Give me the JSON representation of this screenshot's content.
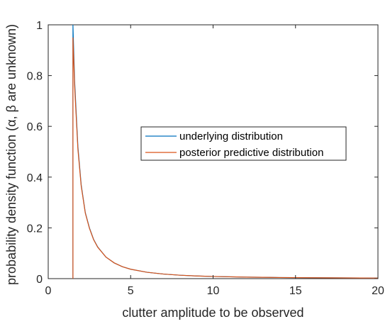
{
  "chart_data": {
    "type": "line",
    "xlabel": "clutter amplitude to be observed",
    "ylabel": "probability density function (α, β are unknown)",
    "xlim": [
      0,
      20
    ],
    "ylim": [
      0,
      1
    ],
    "xticks": [
      0,
      5,
      10,
      15,
      20
    ],
    "yticks": [
      0,
      0.2,
      0.4,
      0.6,
      0.8,
      1
    ],
    "xtick_labels": [
      "0",
      "5",
      "10",
      "15",
      "20"
    ],
    "ytick_labels": [
      "0",
      "0.2",
      "0.4",
      "0.6",
      "0.8",
      "1"
    ],
    "grid": false,
    "legend_position": "center-right",
    "series": [
      {
        "name": "underlying distribution",
        "color": "#0072BD",
        "x": [
          1.5,
          1.5,
          1.6,
          1.8,
          2.0,
          2.25,
          2.5,
          2.75,
          3.0,
          3.5,
          4.0,
          4.5,
          5.0,
          6.0,
          7.0,
          8.0,
          9.0,
          10.0,
          12.0,
          14.0,
          16.0,
          18.0,
          20.0
        ],
        "values": [
          0,
          1.0,
          0.78,
          0.52,
          0.37,
          0.26,
          0.2,
          0.155,
          0.125,
          0.085,
          0.062,
          0.047,
          0.037,
          0.025,
          0.018,
          0.0135,
          0.0105,
          0.0085,
          0.006,
          0.0044,
          0.0034,
          0.0027,
          0.0022
        ]
      },
      {
        "name": "posterior predictive distribution",
        "color": "#D95319",
        "x": [
          1.5,
          1.5,
          1.6,
          1.8,
          2.0,
          2.25,
          2.5,
          2.75,
          3.0,
          3.5,
          4.0,
          4.5,
          5.0,
          6.0,
          7.0,
          8.0,
          9.0,
          10.0,
          12.0,
          14.0,
          16.0,
          18.0,
          20.0
        ],
        "values": [
          0,
          0.95,
          0.76,
          0.51,
          0.365,
          0.258,
          0.198,
          0.154,
          0.124,
          0.085,
          0.062,
          0.047,
          0.037,
          0.025,
          0.018,
          0.0135,
          0.0105,
          0.0085,
          0.006,
          0.0044,
          0.0034,
          0.0027,
          0.0022
        ]
      }
    ]
  }
}
